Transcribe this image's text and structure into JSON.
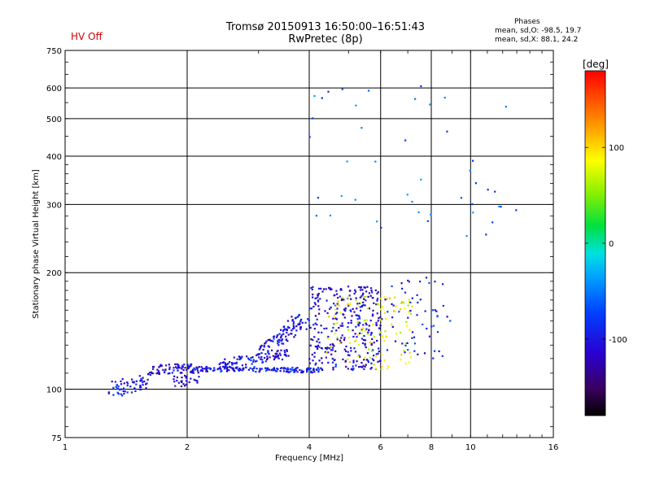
{
  "header": {
    "title_line1": "Tromsø 20150913 16:50:00–16:51:43",
    "title_line2": "RwPretec (8p)",
    "hv_status": "HV Off",
    "hv_color": "#d40000",
    "stats_heading": "Phases",
    "stats_line1": "mean, sd,O: -98.5, 19.7",
    "stats_line2": "mean, sd,X:  88.1, 24.2"
  },
  "chart_data": {
    "type": "scatter",
    "title": "Tromsø 20150913 16:50:00–16:51:43",
    "subtitle": "RwPretec (8p)",
    "xlabel": "Frequency [MHz]",
    "ylabel": "Stationary phase Virtual Height [km]",
    "x_scale": "log2",
    "y_scale": "log",
    "xlim": [
      1,
      16
    ],
    "ylim": [
      75,
      750
    ],
    "x_major_ticks": [
      1,
      2,
      4,
      6,
      8,
      10,
      16
    ],
    "x_tick_labels": [
      "1",
      "2",
      "4",
      "6",
      "8",
      "10",
      "16"
    ],
    "x_grid": [
      2,
      4,
      6,
      8,
      10
    ],
    "y_major_ticks": [
      75,
      100,
      200,
      300,
      400,
      500,
      600,
      750
    ],
    "y_tick_labels": [
      "75",
      "100",
      "200",
      "300",
      "400",
      "500",
      "600",
      "750"
    ],
    "y_grid": [
      100,
      200,
      300,
      400,
      500,
      600
    ],
    "colorbar": {
      "unit": "[deg]",
      "range": [
        -180,
        180
      ],
      "tick_values": [
        100,
        0,
        -100
      ],
      "tick_labels": [
        "100",
        "0",
        "-100"
      ]
    },
    "trace_segments": [
      {
        "name": "low-band O trace",
        "phase": -100,
        "x0": 1.28,
        "x1": 1.6,
        "y0": 100,
        "y1": 104,
        "count": 60,
        "spread": 0.05
      },
      {
        "name": "low-band O trace upper",
        "phase": -110,
        "x0": 1.6,
        "x1": 2.05,
        "y0": 112,
        "y1": 114,
        "count": 70,
        "spread": 0.03
      },
      {
        "name": "low-band lower branch",
        "phase": -115,
        "x0": 1.85,
        "x1": 2.15,
        "y0": 104,
        "y1": 108,
        "count": 30,
        "spread": 0.04
      },
      {
        "name": "E-layer flat trace",
        "phase": -95,
        "x0": 2.05,
        "x1": 4.3,
        "y0": 113,
        "y1": 112,
        "count": 160,
        "spread": 0.015
      },
      {
        "name": "E-layer upper trace",
        "phase": -105,
        "x0": 2.4,
        "x1": 3.6,
        "y0": 116,
        "y1": 124,
        "count": 90,
        "spread": 0.03
      },
      {
        "name": "rising trace",
        "phase": -105,
        "x0": 3.0,
        "x1": 4.0,
        "y0": 125,
        "y1": 150,
        "count": 80,
        "spread": 0.04
      },
      {
        "name": "upper rising trace",
        "phase": -100,
        "x0": 3.4,
        "x1": 3.8,
        "y0": 140,
        "y1": 158,
        "count": 25,
        "spread": 0.03
      },
      {
        "name": "F-region cloud",
        "phase": -110,
        "x0": 4.0,
        "x1": 6.0,
        "y0": 112,
        "y1": 185,
        "count": 320,
        "spread": 0.0
      },
      {
        "name": "X-mode cloud",
        "phase": 85,
        "x0": 4.4,
        "x1": 7.2,
        "y0": 112,
        "y1": 175,
        "count": 110,
        "spread": 0.0
      },
      {
        "name": "high-frequency scatter",
        "phase": -90,
        "x0": 6.0,
        "x1": 9.0,
        "y0": 120,
        "y1": 195,
        "count": 60,
        "spread": 0.0
      },
      {
        "name": "sporadic high echoes",
        "phase": -60,
        "x0": 4.0,
        "x1": 13.0,
        "y0": 240,
        "y1": 620,
        "count": 45,
        "spread": 0.0
      }
    ]
  }
}
